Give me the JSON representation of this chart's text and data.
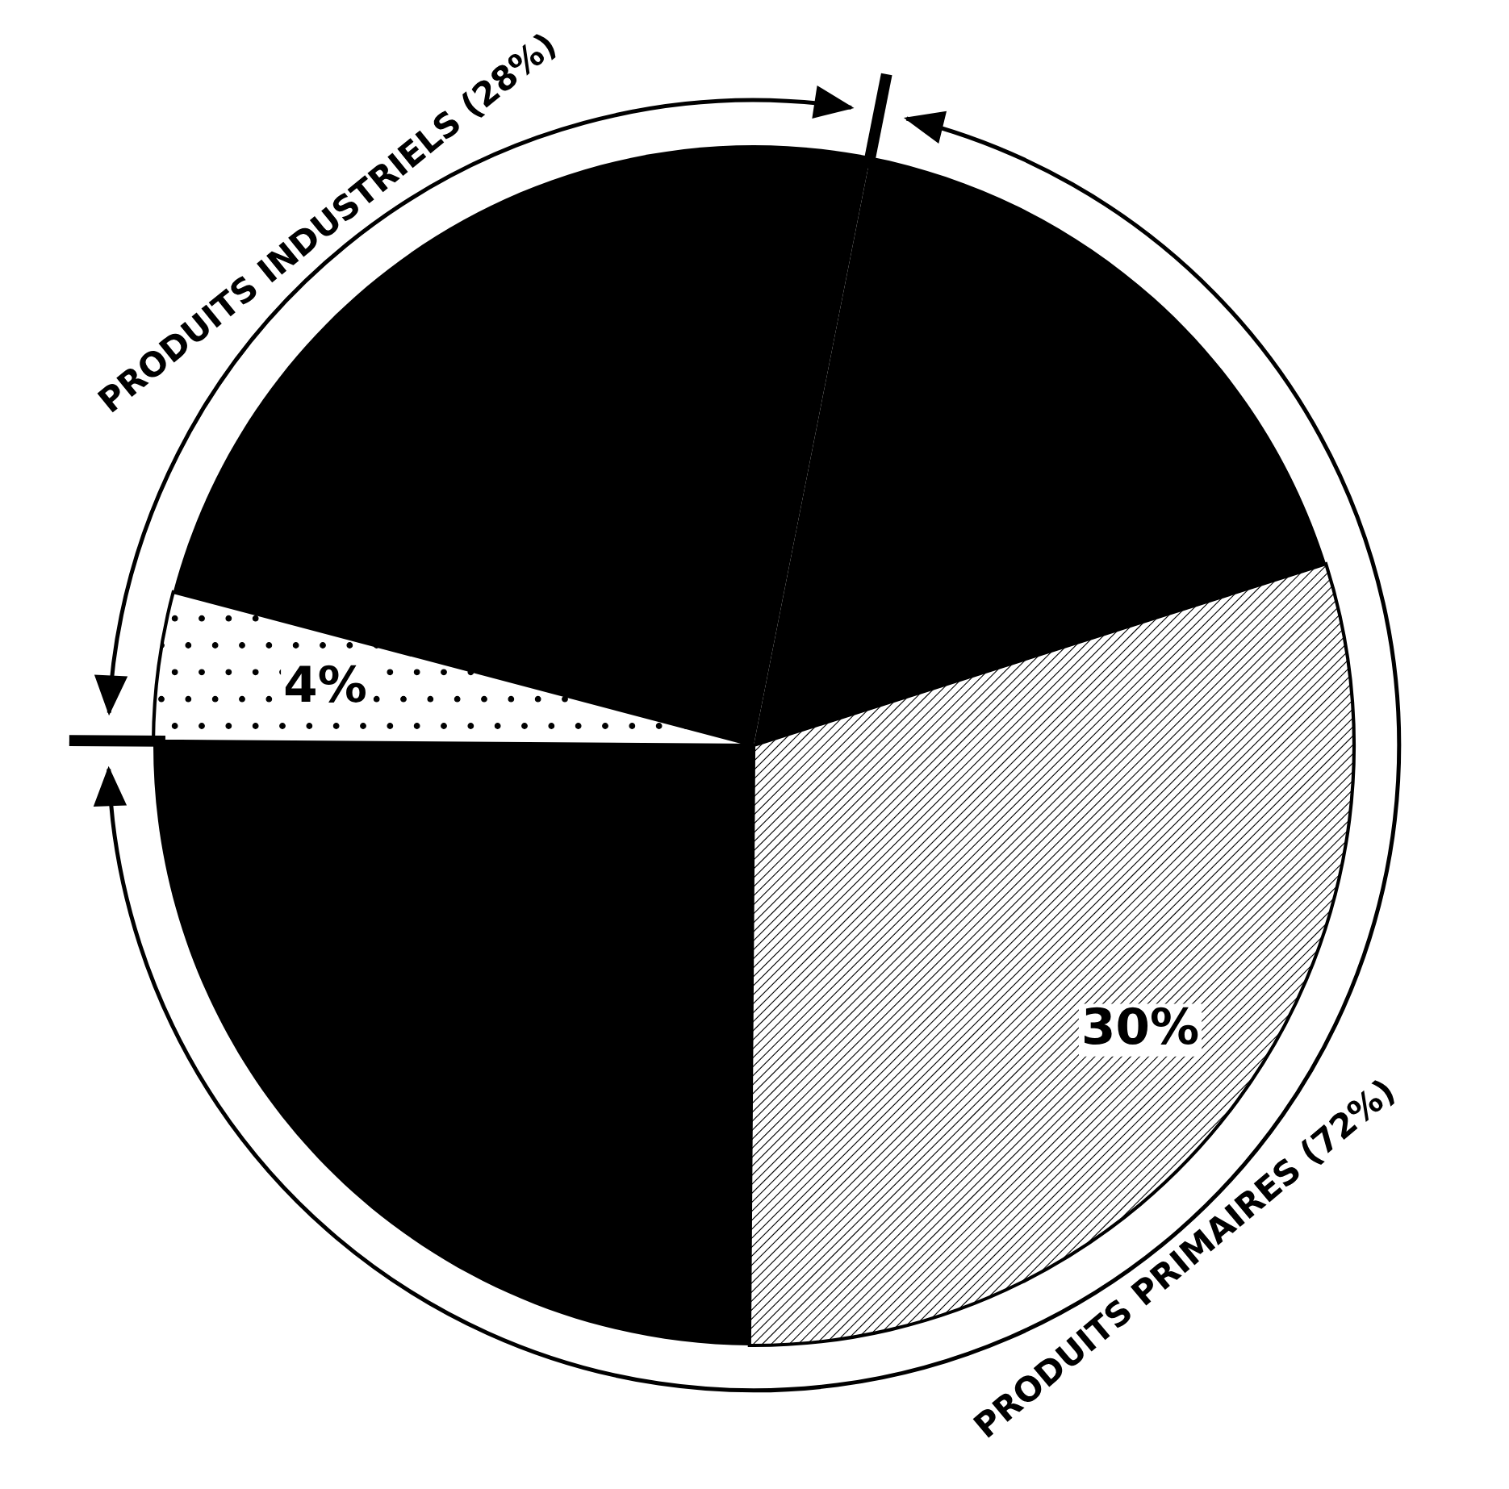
{
  "chart_data": {
    "type": "pie",
    "categories": [
      null,
      null,
      null,
      null,
      null
    ],
    "values": [
      17,
      24,
      4,
      25,
      30
    ],
    "colors": [
      "#000000",
      "#000000",
      "#ffffff",
      "#000000",
      "#ffffff"
    ],
    "value_labels": [
      null,
      null,
      "4%",
      null,
      "30%"
    ],
    "annotations": [
      "PRODUITS INDUSTRIELS (28%)",
      "PRODUITS PRIMAIRES (72%)"
    ]
  }
}
